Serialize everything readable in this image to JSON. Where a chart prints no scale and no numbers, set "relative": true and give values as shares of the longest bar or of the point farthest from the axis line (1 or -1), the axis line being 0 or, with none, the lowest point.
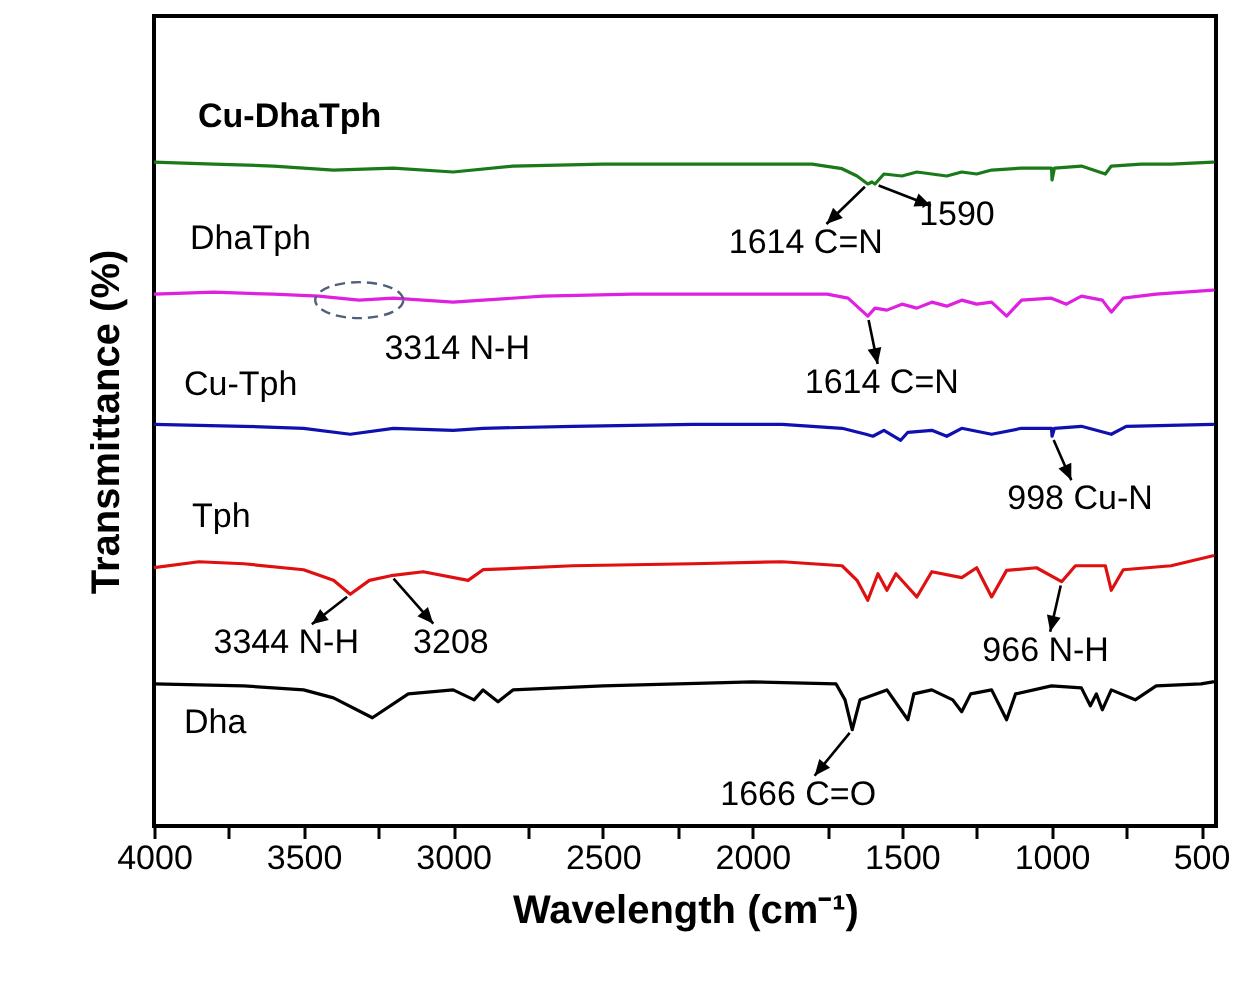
{
  "chart_data": {
    "type": "line",
    "relative": true,
    "xlabel": "Wavelength (cm⁻¹)",
    "ylabel": "Transmittance (%)",
    "xlim": [
      4000,
      450
    ],
    "xticks": [
      4000,
      {
        "value": 3750,
        "label": null
      },
      3500,
      {
        "value": 3250,
        "label": null
      },
      3000,
      {
        "value": 2750,
        "label": null
      },
      2500,
      {
        "value": 2250,
        "label": null
      },
      2000,
      {
        "value": 1750,
        "label": null
      },
      1500,
      {
        "value": 1250,
        "label": null
      },
      1000,
      {
        "value": 750,
        "label": null
      },
      500
    ],
    "series": [
      {
        "name": "Cu-DhaTph",
        "color": "#1a7a1a",
        "x": [
          4000,
          3800,
          3600,
          3400,
          3200,
          3000,
          2800,
          2500,
          2200,
          2000,
          1800,
          1700,
          1650,
          1614,
          1600,
          1590,
          1560,
          1500,
          1450,
          1400,
          1350,
          1300,
          1250,
          1200,
          1100,
          1000,
          998,
          990,
          900,
          820,
          800,
          700,
          600,
          460
        ],
        "values": [
          1.0,
          0.997,
          0.994,
          0.988,
          0.991,
          0.985,
          0.994,
          0.997,
          0.997,
          0.997,
          0.997,
          0.99,
          0.979,
          0.967,
          0.97,
          0.967,
          0.982,
          0.979,
          0.985,
          0.982,
          0.979,
          0.985,
          0.982,
          0.988,
          0.991,
          0.991,
          0.973,
          0.991,
          0.994,
          0.982,
          0.994,
          0.997,
          0.997,
          1.0
        ]
      },
      {
        "name": "DhaTph",
        "color": "#e020e0",
        "x": [
          4000,
          3800,
          3600,
          3450,
          3314,
          3200,
          3000,
          2900,
          2700,
          2400,
          2000,
          1750,
          1680,
          1614,
          1590,
          1550,
          1500,
          1450,
          1400,
          1350,
          1300,
          1250,
          1200,
          1150,
          1100,
          1000,
          950,
          900,
          830,
          800,
          760,
          650,
          460
        ],
        "values": [
          0.801,
          0.804,
          0.801,
          0.798,
          0.792,
          0.795,
          0.789,
          0.792,
          0.798,
          0.801,
          0.801,
          0.801,
          0.795,
          0.768,
          0.78,
          0.777,
          0.786,
          0.78,
          0.789,
          0.783,
          0.792,
          0.786,
          0.789,
          0.768,
          0.792,
          0.795,
          0.786,
          0.798,
          0.792,
          0.774,
          0.795,
          0.801,
          0.807
        ]
      },
      {
        "name": "Cu-Tph",
        "color": "#1010b0",
        "x": [
          4000,
          3700,
          3500,
          3344,
          3200,
          3000,
          2900,
          2600,
          2200,
          1900,
          1700,
          1620,
          1597,
          1560,
          1504,
          1480,
          1400,
          1350,
          1300,
          1200,
          1100,
          1000,
          998,
          990,
          900,
          800,
          750,
          460
        ],
        "values": [
          0.605,
          0.602,
          0.599,
          0.59,
          0.599,
          0.596,
          0.599,
          0.602,
          0.605,
          0.605,
          0.599,
          0.59,
          0.587,
          0.596,
          0.581,
          0.593,
          0.596,
          0.587,
          0.599,
          0.59,
          0.599,
          0.599,
          0.587,
          0.599,
          0.602,
          0.59,
          0.602,
          0.605
        ]
      },
      {
        "name": "Tph",
        "color": "#e01010",
        "x": [
          4000,
          3850,
          3700,
          3500,
          3400,
          3344,
          3280,
          3208,
          3100,
          2950,
          2900,
          2600,
          2200,
          1900,
          1700,
          1650,
          1614,
          1580,
          1550,
          1520,
          1480,
          1450,
          1400,
          1300,
          1250,
          1200,
          1150,
          1050,
          966,
          920,
          820,
          800,
          760,
          600,
          460
        ],
        "values": [
          0.389,
          0.398,
          0.395,
          0.386,
          0.37,
          0.349,
          0.37,
          0.377,
          0.383,
          0.37,
          0.386,
          0.392,
          0.395,
          0.398,
          0.392,
          0.37,
          0.34,
          0.38,
          0.355,
          0.38,
          0.36,
          0.345,
          0.383,
          0.374,
          0.389,
          0.345,
          0.385,
          0.389,
          0.368,
          0.392,
          0.392,
          0.355,
          0.386,
          0.392,
          0.407
        ]
      },
      {
        "name": "Dha",
        "color": "#000000",
        "x": [
          4000,
          3700,
          3500,
          3400,
          3270,
          3150,
          3000,
          2930,
          2900,
          2850,
          2800,
          2500,
          2000,
          1720,
          1690,
          1666,
          1640,
          1550,
          1480,
          1460,
          1400,
          1330,
          1300,
          1270,
          1200,
          1150,
          1120,
          1000,
          900,
          870,
          850,
          830,
          800,
          720,
          650,
          500,
          460
        ],
        "values": [
          0.214,
          0.211,
          0.205,
          0.193,
          0.163,
          0.199,
          0.205,
          0.19,
          0.205,
          0.187,
          0.205,
          0.211,
          0.217,
          0.214,
          0.19,
          0.145,
          0.19,
          0.205,
          0.16,
          0.199,
          0.205,
          0.19,
          0.172,
          0.199,
          0.205,
          0.16,
          0.199,
          0.211,
          0.208,
          0.181,
          0.199,
          0.175,
          0.205,
          0.19,
          0.211,
          0.214,
          0.217
        ]
      }
    ],
    "annotations": [
      {
        "text": "1614 C=N",
        "x": 1614,
        "y": 0.967
      },
      {
        "text": "1590",
        "x": 1590,
        "y": 0.967
      },
      {
        "text": "1614 C=N",
        "x": 1614,
        "y": 0.768
      },
      {
        "text": "998 Cu-N",
        "x": 998,
        "y": 0.587
      },
      {
        "text": "3344 N-H",
        "x": 3344,
        "y": 0.349
      },
      {
        "text": "3208",
        "x": 3208,
        "y": 0.377
      },
      {
        "text": "966 N-H",
        "x": 966,
        "y": 0.368
      },
      {
        "text": "1666 C=O",
        "x": 1666,
        "y": 0.145
      },
      {
        "text": "3314 N-H",
        "x": 3314,
        "y": 0.792
      }
    ]
  }
}
